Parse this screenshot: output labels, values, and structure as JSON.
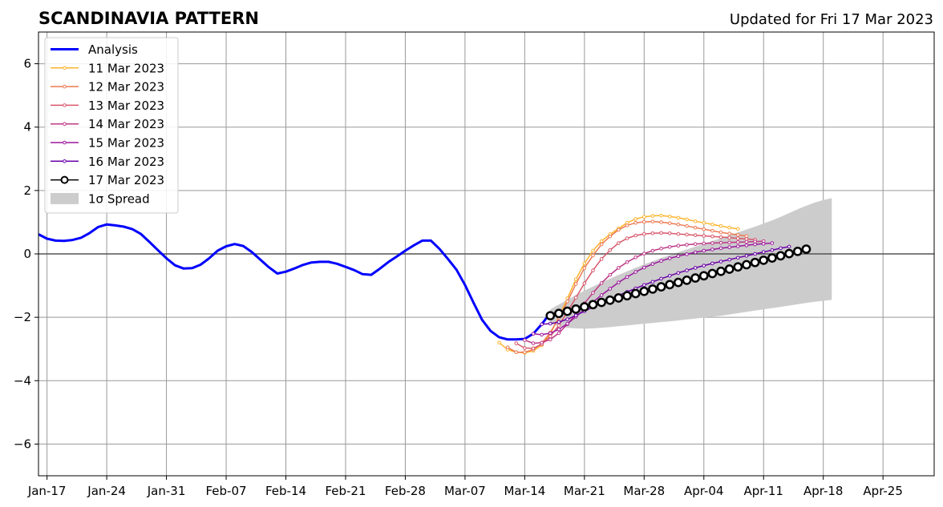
{
  "chart_data": {
    "type": "line",
    "title": "SCANDINAVIA PATTERN",
    "subtitle": "Updated for Fri 17 Mar 2023",
    "xlabel": "",
    "ylabel": "",
    "xlim": [
      "2023-01-16",
      "2023-05-01"
    ],
    "ylim": [
      -7,
      7
    ],
    "x_ticks": [
      "Jan-17",
      "Jan-24",
      "Jan-31",
      "Feb-07",
      "Feb-14",
      "Feb-21",
      "Feb-28",
      "Mar-07",
      "Mar-14",
      "Mar-21",
      "Mar-28",
      "Apr-04",
      "Apr-11",
      "Apr-18",
      "Apr-25"
    ],
    "y_ticks": [
      "−6",
      "−4",
      "−2",
      "0",
      "2",
      "4",
      "6"
    ],
    "grid": true,
    "legend_position": "upper-left",
    "colors": {
      "analysis": "#0000ff",
      "spread": "#cccccc",
      "grid": "#999999",
      "zero_line": "#555555"
    },
    "series": [
      {
        "name": "Analysis",
        "style": "analysis",
        "color": "#0000ff",
        "start": "2023-01-16",
        "values": [
          0.62,
          0.48,
          0.42,
          0.41,
          0.44,
          0.51,
          0.66,
          0.85,
          0.93,
          0.9,
          0.86,
          0.78,
          0.63,
          0.38,
          0.12,
          -0.14,
          -0.36,
          -0.46,
          -0.45,
          -0.34,
          -0.14,
          0.1,
          0.24,
          0.31,
          0.25,
          0.06,
          -0.18,
          -0.42,
          -0.62,
          -0.56,
          -0.46,
          -0.35,
          -0.27,
          -0.25,
          -0.25,
          -0.31,
          -0.41,
          -0.51,
          -0.64,
          -0.66,
          -0.47,
          -0.26,
          -0.08,
          0.1,
          0.27,
          0.42,
          0.42,
          0.16,
          -0.16,
          -0.5,
          -0.98,
          -1.54,
          -2.08,
          -2.43,
          -2.63,
          -2.7,
          -2.7,
          -2.68,
          -2.52,
          -2.22,
          -1.86
        ]
      },
      {
        "name": "11 Mar 2023",
        "style": "forecast",
        "color": "#fdb42f",
        "start": "2023-03-11",
        "values": [
          -2.8,
          -3.02,
          -3.1,
          -3.12,
          -3.06,
          -2.88,
          -2.52,
          -2.0,
          -1.4,
          -0.8,
          -0.3,
          0.1,
          0.4,
          0.62,
          0.8,
          0.98,
          1.1,
          1.17,
          1.2,
          1.21,
          1.18,
          1.14,
          1.09,
          1.03,
          0.98,
          0.93,
          0.88,
          0.83,
          0.79
        ]
      },
      {
        "name": "12 Mar 2023",
        "style": "forecast",
        "color": "#ed7953",
        "start": "2023-03-12",
        "values": [
          -2.95,
          -3.1,
          -3.1,
          -3.02,
          -2.82,
          -2.48,
          -2.02,
          -1.5,
          -0.95,
          -0.45,
          -0.05,
          0.3,
          0.55,
          0.76,
          0.9,
          0.98,
          1.01,
          1.02,
          1.0,
          0.97,
          0.93,
          0.88,
          0.83,
          0.78,
          0.73,
          0.68,
          0.64,
          0.6,
          0.56
        ]
      },
      {
        "name": "13 Mar 2023",
        "style": "forecast",
        "color": "#d8576b",
        "start": "2023-03-13",
        "values": [
          -2.82,
          -2.97,
          -2.98,
          -2.85,
          -2.6,
          -2.26,
          -1.83,
          -1.38,
          -0.93,
          -0.52,
          -0.16,
          0.12,
          0.34,
          0.49,
          0.58,
          0.63,
          0.65,
          0.66,
          0.65,
          0.63,
          0.61,
          0.59,
          0.57,
          0.55,
          0.53,
          0.51,
          0.49,
          0.47,
          0.45
        ]
      },
      {
        "name": "14 Mar 2023",
        "style": "forecast",
        "color": "#bd3786",
        "start": "2023-03-14",
        "values": [
          -2.72,
          -2.82,
          -2.8,
          -2.7,
          -2.5,
          -2.22,
          -1.9,
          -1.56,
          -1.23,
          -0.92,
          -0.66,
          -0.44,
          -0.26,
          -0.11,
          0.01,
          0.1,
          0.17,
          0.22,
          0.26,
          0.29,
          0.31,
          0.33,
          0.34,
          0.35,
          0.36,
          0.37,
          0.38,
          0.39,
          0.4
        ]
      },
      {
        "name": "15 Mar 2023",
        "style": "forecast",
        "color": "#9c179e",
        "start": "2023-03-15",
        "values": [
          -2.52,
          -2.55,
          -2.5,
          -2.38,
          -2.2,
          -1.98,
          -1.75,
          -1.52,
          -1.3,
          -1.1,
          -0.9,
          -0.73,
          -0.57,
          -0.43,
          -0.32,
          -0.22,
          -0.14,
          -0.07,
          -0.01,
          0.05,
          0.1,
          0.14,
          0.18,
          0.21,
          0.24,
          0.27,
          0.3,
          0.32,
          0.34
        ]
      },
      {
        "name": "16 Mar 2023",
        "style": "forecast",
        "color": "#6a00a8",
        "start": "2023-03-16",
        "values": [
          -2.22,
          -2.2,
          -2.15,
          -2.06,
          -1.94,
          -1.81,
          -1.68,
          -1.55,
          -1.43,
          -1.31,
          -1.2,
          -1.09,
          -0.98,
          -0.88,
          -0.78,
          -0.69,
          -0.6,
          -0.52,
          -0.44,
          -0.37,
          -0.3,
          -0.24,
          -0.18,
          -0.12,
          -0.06,
          0.0,
          0.06,
          0.12,
          0.18,
          0.23
        ]
      },
      {
        "name": "17 Mar 2023",
        "style": "current",
        "color": "#000000",
        "start": "2023-03-17",
        "values": [
          -1.95,
          -1.88,
          -1.81,
          -1.74,
          -1.67,
          -1.6,
          -1.53,
          -1.46,
          -1.39,
          -1.32,
          -1.25,
          -1.18,
          -1.11,
          -1.04,
          -0.97,
          -0.9,
          -0.83,
          -0.76,
          -0.69,
          -0.62,
          -0.55,
          -0.48,
          -0.41,
          -0.34,
          -0.27,
          -0.2,
          -0.13,
          -0.06,
          0.01,
          0.08,
          0.15
        ]
      }
    ],
    "spread": {
      "name": "1σ Spread",
      "color": "#cccccc",
      "start": "2023-03-17",
      "upper": [
        -1.75,
        -1.6,
        -1.45,
        -1.3,
        -1.16,
        -1.03,
        -0.9,
        -0.78,
        -0.66,
        -0.55,
        -0.44,
        -0.33,
        -0.23,
        -0.13,
        -0.04,
        0.05,
        0.14,
        0.23,
        0.32,
        0.41,
        0.5,
        0.59,
        0.68,
        0.77,
        0.86,
        0.96,
        1.06,
        1.17,
        1.29,
        1.41,
        1.52,
        1.62,
        1.7,
        1.76
      ],
      "lower": [
        -2.2,
        -2.28,
        -2.33,
        -2.35,
        -2.36,
        -2.35,
        -2.33,
        -2.31,
        -2.28,
        -2.26,
        -2.23,
        -2.2,
        -2.18,
        -2.15,
        -2.13,
        -2.1,
        -2.07,
        -2.04,
        -2.01,
        -1.98,
        -1.95,
        -1.91,
        -1.87,
        -1.83,
        -1.79,
        -1.75,
        -1.71,
        -1.67,
        -1.63,
        -1.59,
        -1.55,
        -1.51,
        -1.48,
        -1.45
      ]
    }
  }
}
